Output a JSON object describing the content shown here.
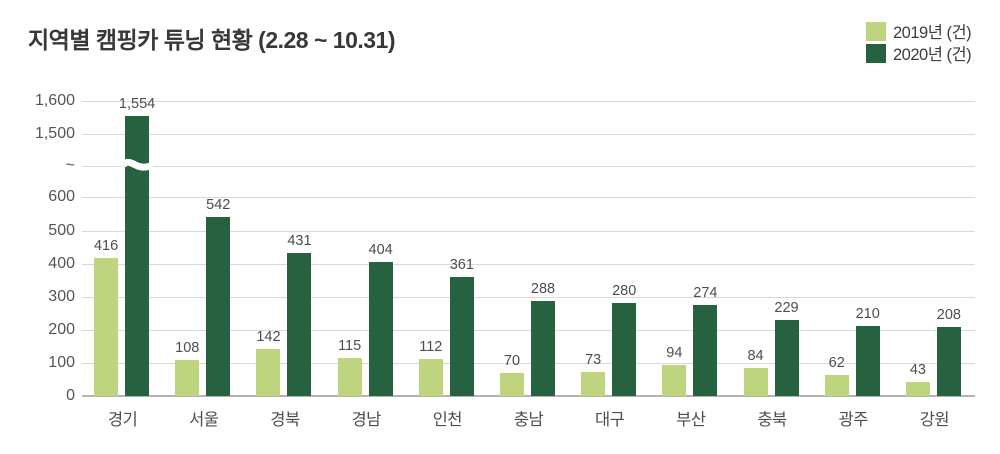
{
  "title": "지역별 캠핑카 튜닝 현황 (2.28 ~ 10.31)",
  "legend": [
    {
      "label": "2019년 (건)",
      "color": "#bed47e"
    },
    {
      "label": "2020년 (건)",
      "color": "#266140"
    }
  ],
  "colors": {
    "series_2019": "#bed47e",
    "series_2020": "#266140",
    "gridline": "#d9d9d9",
    "axis_line": "#b3b3b3",
    "title_text": "#383838",
    "label_text": "#4d4d4d"
  },
  "chart_data": {
    "type": "bar",
    "title": "지역별 캠핑카 튜닝 현황 (2.28 ~ 10.31)",
    "categories": [
      "경기",
      "서울",
      "경북",
      "경남",
      "인천",
      "충남",
      "대구",
      "부산",
      "충북",
      "광주",
      "강원"
    ],
    "series": [
      {
        "name": "2019년 (건)",
        "color": "#bed47e",
        "values": [
          416,
          108,
          142,
          115,
          112,
          70,
          73,
          94,
          84,
          62,
          43
        ]
      },
      {
        "name": "2020년 (건)",
        "color": "#266140",
        "values": [
          1554,
          542,
          431,
          404,
          361,
          288,
          280,
          274,
          229,
          210,
          208
        ]
      }
    ],
    "xlabel": "",
    "ylabel": "",
    "y_axis": {
      "axis_break": true,
      "break_symbol": "~",
      "ticks_lower": [
        0,
        100,
        200,
        300,
        400,
        500,
        600
      ],
      "ticks_upper": [
        1500,
        1600
      ],
      "tick_labels_visible": [
        "0",
        "100",
        "200",
        "300",
        "400",
        "500",
        "600",
        "~",
        "1,500",
        "1,600"
      ]
    },
    "value_labels": true,
    "grid": true,
    "legend_position": "top-right"
  }
}
